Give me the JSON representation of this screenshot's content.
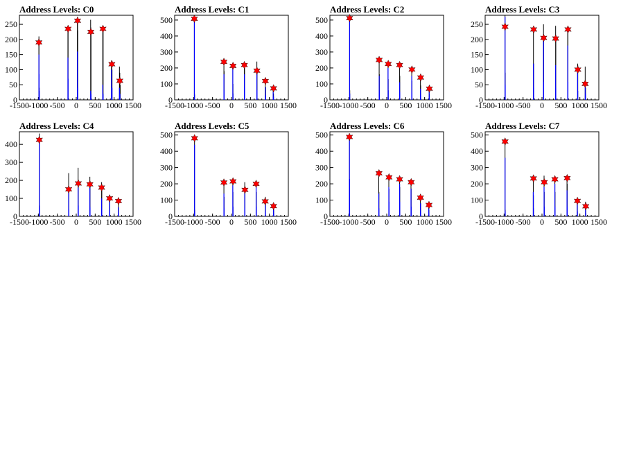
{
  "chart_data": [
    {
      "type": "bar",
      "title": "Address Levels: C0",
      "xlim": [
        -1500,
        1500
      ],
      "ylim": [
        0,
        280
      ],
      "x_ticks": [
        -1500,
        -1000,
        -500,
        0,
        500,
        1000,
        1500
      ],
      "y_ticks": [
        0,
        50,
        100,
        150,
        200,
        250
      ],
      "series": [
        {
          "color": "#000000",
          "x": [
            -985,
            -985,
            -975,
            -220,
            -215,
            30,
            35,
            40,
            380,
            385,
            390,
            700,
            705,
            710,
            930,
            940,
            945,
            1140,
            1150,
            1160
          ],
          "values": [
            210,
            195,
            40,
            240,
            230,
            265,
            275,
            230,
            265,
            240,
            225,
            240,
            230,
            225,
            130,
            115,
            100,
            110,
            90,
            50
          ]
        },
        {
          "color": "#0000ff",
          "x": [
            -985,
            -980,
            -975,
            -220,
            -215,
            30,
            40,
            380,
            390,
            700,
            710,
            930,
            945,
            1140,
            1155
          ],
          "values": [
            150,
            85,
            30,
            140,
            70,
            160,
            40,
            30,
            20,
            50,
            20,
            100,
            40,
            40,
            20
          ]
        }
      ],
      "markers": {
        "x": [
          -985,
          -215,
          35,
          385,
          705,
          940,
          1150
        ],
        "y": [
          190,
          235,
          262,
          225,
          235,
          118,
          63
        ]
      }
    },
    {
      "type": "bar",
      "title": "Address Levels: C1",
      "xlim": [
        -1500,
        1500
      ],
      "ylim": [
        0,
        530
      ],
      "x_ticks": [
        -1500,
        -1000,
        -500,
        0,
        500,
        1000,
        1500
      ],
      "y_ticks": [
        0,
        100,
        200,
        300,
        400,
        500
      ],
      "series": [
        {
          "color": "#000000",
          "x": [
            -980,
            -975,
            -200,
            -195,
            35,
            40,
            340,
            345,
            670,
            675,
            890,
            900,
            1100,
            1110
          ],
          "values": [
            530,
            40,
            215,
            180,
            210,
            100,
            230,
            200,
            240,
            170,
            130,
            80,
            80,
            40
          ]
        },
        {
          "color": "#0000ff",
          "x": [
            -980,
            -975,
            -200,
            -195,
            35,
            40,
            340,
            345,
            670,
            675,
            890,
            900,
            1100,
            1110
          ],
          "values": [
            500,
            30,
            160,
            60,
            210,
            40,
            160,
            80,
            170,
            60,
            80,
            30,
            50,
            20
          ]
        }
      ],
      "markers": {
        "x": [
          -980,
          -200,
          40,
          340,
          670,
          895,
          1110
        ],
        "y": [
          508,
          238,
          213,
          218,
          183,
          118,
          72
        ]
      }
    },
    {
      "type": "bar",
      "title": "Address Levels: C2",
      "xlim": [
        -1500,
        1500
      ],
      "ylim": [
        0,
        530
      ],
      "x_ticks": [
        -1500,
        -1000,
        -500,
        0,
        500,
        1000,
        1500
      ],
      "y_ticks": [
        0,
        100,
        200,
        300,
        400,
        500
      ],
      "series": [
        {
          "color": "#000000",
          "x": [
            -980,
            -975,
            -200,
            -195,
            35,
            40,
            340,
            345,
            660,
            665,
            890,
            895,
            1120,
            1125
          ],
          "values": [
            530,
            60,
            260,
            160,
            230,
            130,
            225,
            150,
            190,
            120,
            145,
            90,
            70,
            40
          ]
        },
        {
          "color": "#0000ff",
          "x": [
            -980,
            -975,
            -200,
            -195,
            35,
            40,
            340,
            345,
            660,
            665,
            890,
            895,
            1120,
            1125
          ],
          "values": [
            500,
            40,
            150,
            60,
            200,
            60,
            110,
            50,
            150,
            50,
            70,
            30,
            50,
            20
          ]
        }
      ],
      "markers": {
        "x": [
          -980,
          -200,
          40,
          340,
          665,
          895,
          1125
        ],
        "y": [
          512,
          250,
          225,
          218,
          190,
          140,
          70
        ]
      }
    },
    {
      "type": "bar",
      "title": "Address Levels: C3",
      "xlim": [
        -1500,
        1500
      ],
      "ylim": [
        0,
        280
      ],
      "x_ticks": [
        -1500,
        -1000,
        -500,
        0,
        500,
        1000,
        1500
      ],
      "y_ticks": [
        0,
        50,
        100,
        150,
        200,
        250
      ],
      "series": [
        {
          "color": "#000000",
          "x": [
            -975,
            -970,
            -225,
            -220,
            40,
            45,
            360,
            365,
            680,
            685,
            940,
            945,
            1140,
            1150
          ],
          "values": [
            280,
            90,
            240,
            120,
            250,
            200,
            245,
            215,
            240,
            235,
            120,
            115,
            110,
            40
          ]
        },
        {
          "color": "#0000ff",
          "x": [
            -975,
            -970,
            -225,
            -220,
            40,
            45,
            360,
            365,
            680,
            685,
            940,
            945,
            1140,
            1150
          ],
          "values": [
            275,
            50,
            120,
            40,
            200,
            60,
            115,
            40,
            180,
            60,
            100,
            30,
            50,
            20
          ]
        }
      ],
      "markers": {
        "x": [
          -975,
          -220,
          45,
          360,
          685,
          945,
          1140
        ],
        "y": [
          242,
          233,
          205,
          203,
          233,
          100,
          53
        ]
      }
    },
    {
      "type": "bar",
      "title": "Address Levels: C4",
      "xlim": [
        -1500,
        1500
      ],
      "ylim": [
        0,
        470
      ],
      "x_ticks": [
        -1500,
        -1000,
        -500,
        0,
        500,
        1000,
        1500
      ],
      "y_ticks": [
        0,
        100,
        200,
        300,
        400
      ],
      "series": [
        {
          "color": "#000000",
          "x": [
            -975,
            -970,
            -200,
            -195,
            50,
            55,
            360,
            365,
            670,
            675,
            880,
            885,
            1110,
            1115
          ],
          "values": [
            460,
            60,
            240,
            150,
            270,
            180,
            220,
            170,
            190,
            160,
            110,
            90,
            90,
            50
          ]
        },
        {
          "color": "#0000ff",
          "x": [
            -975,
            -970,
            -200,
            -195,
            50,
            55,
            360,
            365,
            670,
            675,
            880,
            885,
            1110,
            1115
          ],
          "values": [
            440,
            50,
            130,
            40,
            160,
            60,
            160,
            50,
            100,
            40,
            80,
            30,
            50,
            20
          ]
        }
      ],
      "markers": {
        "x": [
          -975,
          -200,
          55,
          360,
          670,
          880,
          1115
        ],
        "y": [
          425,
          150,
          183,
          178,
          160,
          100,
          85
        ]
      }
    },
    {
      "type": "bar",
      "title": "Address Levels: C5",
      "xlim": [
        -1500,
        1500
      ],
      "ylim": [
        0,
        520
      ],
      "x_ticks": [
        -1500,
        -1000,
        -500,
        0,
        500,
        1000,
        1500
      ],
      "y_ticks": [
        0,
        100,
        200,
        300,
        400,
        500
      ],
      "series": [
        {
          "color": "#000000",
          "x": [
            -975,
            -970,
            -200,
            -195,
            35,
            40,
            350,
            355,
            650,
            655,
            890,
            895,
            1110,
            1115
          ],
          "values": [
            490,
            40,
            200,
            120,
            230,
            150,
            210,
            160,
            200,
            150,
            120,
            80,
            70,
            40
          ]
        },
        {
          "color": "#0000ff",
          "x": [
            -975,
            -970,
            -200,
            -195,
            35,
            40,
            350,
            355,
            650,
            655,
            890,
            895,
            1110,
            1115
          ],
          "values": [
            440,
            30,
            140,
            50,
            190,
            60,
            140,
            50,
            180,
            60,
            80,
            30,
            50,
            20
          ]
        }
      ],
      "markers": {
        "x": [
          -975,
          -200,
          40,
          355,
          650,
          890,
          1110
        ],
        "y": [
          480,
          208,
          215,
          163,
          200,
          92,
          63
        ]
      }
    },
    {
      "type": "bar",
      "title": "Address Levels: C6",
      "xlim": [
        -1500,
        1500
      ],
      "ylim": [
        0,
        520
      ],
      "x_ticks": [
        -1500,
        -1000,
        -500,
        0,
        500,
        1000,
        1500
      ],
      "y_ticks": [
        0,
        100,
        200,
        300,
        400,
        500
      ],
      "series": [
        {
          "color": "#000000",
          "x": [
            -985,
            -980,
            -210,
            -205,
            55,
            60,
            340,
            345,
            640,
            645,
            890,
            895,
            1110,
            1115
          ],
          "values": [
            500,
            40,
            250,
            150,
            240,
            170,
            240,
            180,
            220,
            170,
            120,
            80,
            80,
            40
          ]
        },
        {
          "color": "#0000ff",
          "x": [
            -985,
            -980,
            -210,
            -205,
            55,
            60,
            340,
            345,
            640,
            645,
            890,
            895,
            1110,
            1115
          ],
          "values": [
            480,
            230,
            140,
            50,
            180,
            90,
            200,
            90,
            170,
            60,
            80,
            30,
            50,
            20
          ]
        }
      ],
      "markers": {
        "x": [
          -985,
          -205,
          60,
          340,
          645,
          890,
          1115
        ],
        "y": [
          488,
          265,
          240,
          228,
          210,
          115,
          70
        ]
      }
    },
    {
      "type": "bar",
      "title": "Address Levels: C7",
      "xlim": [
        -1500,
        1500
      ],
      "ylim": [
        0,
        520
      ],
      "x_ticks": [
        -1500,
        -1000,
        -500,
        0,
        500,
        1000,
        1500
      ],
      "y_ticks": [
        0,
        100,
        200,
        300,
        400,
        500
      ],
      "series": [
        {
          "color": "#000000",
          "x": [
            -975,
            -970,
            -230,
            -225,
            55,
            60,
            340,
            345,
            660,
            665,
            930,
            935,
            1150,
            1155
          ],
          "values": [
            470,
            40,
            240,
            130,
            250,
            150,
            240,
            150,
            240,
            200,
            110,
            70,
            90,
            40
          ]
        },
        {
          "color": "#0000ff",
          "x": [
            -975,
            -970,
            -230,
            -225,
            55,
            60,
            340,
            345,
            660,
            665,
            930,
            935,
            1150,
            1155
          ],
          "values": [
            360,
            30,
            150,
            50,
            180,
            60,
            200,
            60,
            160,
            60,
            80,
            30,
            60,
            20
          ]
        }
      ],
      "markers": {
        "x": [
          -975,
          -225,
          60,
          340,
          665,
          935,
          1155
        ],
        "y": [
          460,
          233,
          210,
          228,
          235,
          95,
          62
        ]
      }
    }
  ]
}
